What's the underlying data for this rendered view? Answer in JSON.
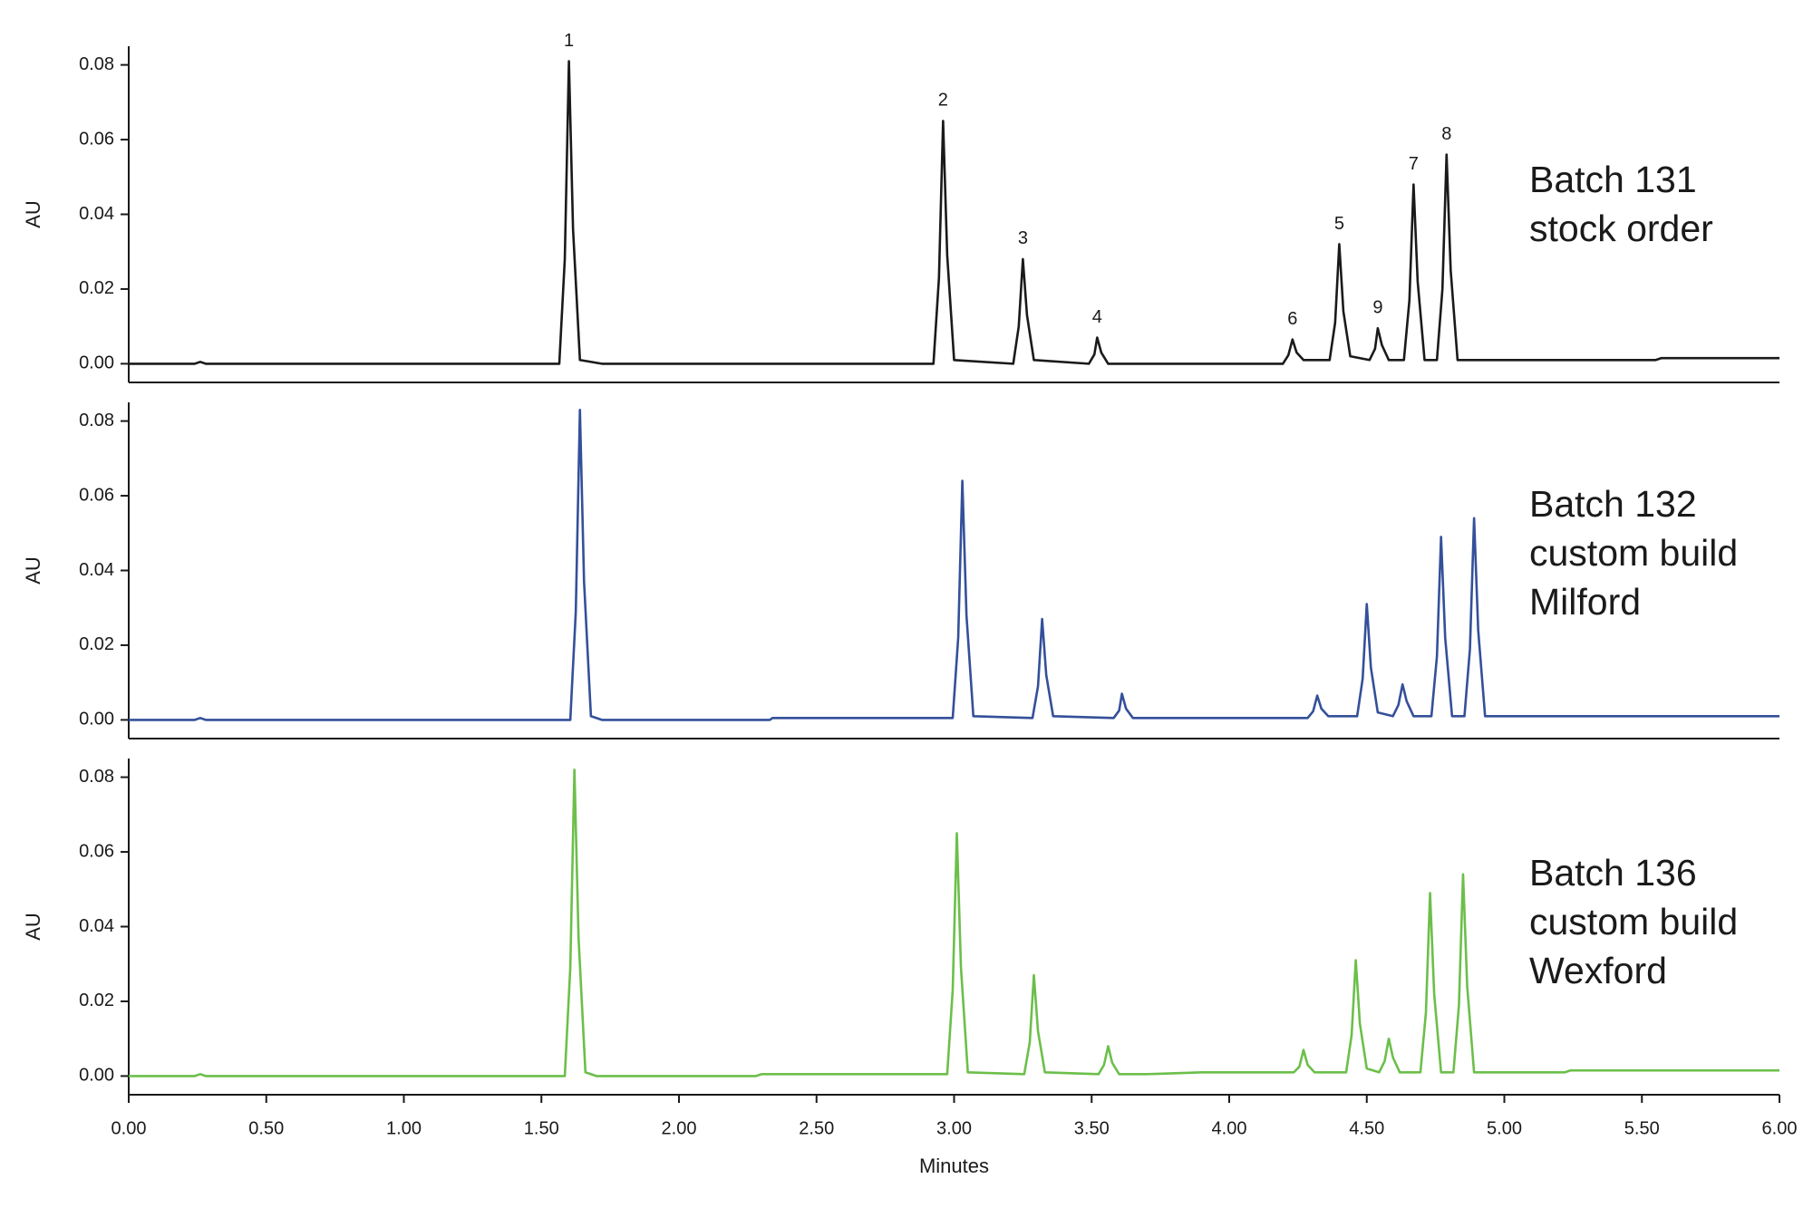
{
  "chart_data": [
    {
      "type": "line",
      "ylabel": "AU",
      "label": [
        "Batch 131",
        "stock order"
      ],
      "xlim": [
        0,
        6
      ],
      "ylim": [
        -0.005,
        0.085
      ],
      "yticks": [
        {
          "value": 0,
          "label": "0.00"
        },
        {
          "value": 0.02,
          "label": "0.02"
        },
        {
          "value": 0.04,
          "label": "0.04"
        },
        {
          "value": 0.06,
          "label": "0.06"
        },
        {
          "value": 0.08,
          "label": "0.08"
        }
      ],
      "x": [
        0,
        0.24,
        0.26,
        0.28,
        1.565,
        1.585,
        1.6,
        1.615,
        1.64,
        1.72,
        2.925,
        2.945,
        2.96,
        2.975,
        3.0,
        3.215,
        3.235,
        3.25,
        3.265,
        3.29,
        3.49,
        3.51,
        3.52,
        3.535,
        3.56,
        4.195,
        4.215,
        4.23,
        4.245,
        4.27,
        4.365,
        4.385,
        4.4,
        4.415,
        4.44,
        4.51,
        4.53,
        4.54,
        4.555,
        4.58,
        4.635,
        4.655,
        4.67,
        4.685,
        4.71,
        4.755,
        4.775,
        4.79,
        4.805,
        4.83,
        5.55,
        5.57,
        6.0
      ],
      "series": [
        {
          "color": "#1a1a1a",
          "values": [
            0,
            0,
            0.0005,
            0,
            0,
            0.028,
            0.081,
            0.036,
            0.001,
            0,
            0,
            0.023,
            0.065,
            0.029,
            0.001,
            0,
            0.01,
            0.028,
            0.013,
            0.001,
            0,
            0.0025,
            0.007,
            0.003,
            0,
            0,
            0.0023,
            0.0065,
            0.003,
            0.001,
            0.001,
            0.011,
            0.032,
            0.014,
            0.002,
            0.001,
            0.004,
            0.0095,
            0.005,
            0.001,
            0.001,
            0.017,
            0.048,
            0.022,
            0.001,
            0.001,
            0.02,
            0.056,
            0.025,
            0.001,
            0.001,
            0.0015,
            0.0015
          ]
        }
      ],
      "annotations": [
        {
          "text": "1",
          "x": 1.6,
          "y": 0.081
        },
        {
          "text": "2",
          "x": 2.96,
          "y": 0.065
        },
        {
          "text": "3",
          "x": 3.25,
          "y": 0.028
        },
        {
          "text": "4",
          "x": 3.52,
          "y": 0.007
        },
        {
          "text": "6",
          "x": 4.23,
          "y": 0.0065
        },
        {
          "text": "5",
          "x": 4.4,
          "y": 0.032
        },
        {
          "text": "9",
          "x": 4.54,
          "y": 0.0095
        },
        {
          "text": "7",
          "x": 4.67,
          "y": 0.048
        },
        {
          "text": "8",
          "x": 4.79,
          "y": 0.056
        }
      ]
    },
    {
      "type": "line",
      "ylabel": "AU",
      "label": [
        "Batch 132",
        "custom build",
        "Milford"
      ],
      "xlim": [
        0,
        6
      ],
      "ylim": [
        -0.005,
        0.085
      ],
      "yticks": [
        {
          "value": 0,
          "label": "0.00"
        },
        {
          "value": 0.02,
          "label": "0.02"
        },
        {
          "value": 0.04,
          "label": "0.04"
        },
        {
          "value": 0.06,
          "label": "0.06"
        },
        {
          "value": 0.08,
          "label": "0.08"
        }
      ],
      "x": [
        0,
        0.24,
        0.26,
        0.28,
        1.605,
        1.625,
        1.64,
        1.655,
        1.68,
        1.72,
        2.33,
        2.34,
        2.995,
        3.015,
        3.03,
        3.045,
        3.07,
        3.285,
        3.305,
        3.32,
        3.335,
        3.36,
        3.58,
        3.6,
        3.61,
        3.625,
        3.65,
        4.285,
        4.305,
        4.32,
        4.335,
        4.36,
        4.465,
        4.485,
        4.5,
        4.515,
        4.54,
        4.595,
        4.615,
        4.63,
        4.645,
        4.67,
        4.735,
        4.755,
        4.77,
        4.785,
        4.81,
        4.855,
        4.875,
        4.89,
        4.905,
        4.93,
        4.96,
        6.0
      ],
      "series": [
        {
          "color": "#34509a",
          "values": [
            0,
            0,
            0.0005,
            0,
            0,
            0.029,
            0.083,
            0.037,
            0.001,
            0,
            0,
            0.0005,
            0.0005,
            0.022,
            0.064,
            0.028,
            0.001,
            0.0005,
            0.009,
            0.027,
            0.012,
            0.001,
            0.0005,
            0.0025,
            0.007,
            0.003,
            0.0005,
            0.0005,
            0.0023,
            0.0065,
            0.003,
            0.001,
            0.001,
            0.011,
            0.031,
            0.014,
            0.002,
            0.001,
            0.004,
            0.0095,
            0.005,
            0.001,
            0.001,
            0.017,
            0.049,
            0.022,
            0.001,
            0.001,
            0.019,
            0.054,
            0.024,
            0.001,
            0.001,
            0.001
          ]
        }
      ]
    },
    {
      "type": "line",
      "ylabel": "AU",
      "label": [
        "Batch 136",
        "custom build",
        "Wexford"
      ],
      "xlabel": "Minutes",
      "xlim": [
        0,
        6
      ],
      "ylim": [
        -0.005,
        0.085
      ],
      "xticks": [
        {
          "value": 0,
          "label": "0.00"
        },
        {
          "value": 0.5,
          "label": "0.50"
        },
        {
          "value": 1,
          "label": "1.00"
        },
        {
          "value": 1.5,
          "label": "1.50"
        },
        {
          "value": 2,
          "label": "2.00"
        },
        {
          "value": 2.5,
          "label": "2.50"
        },
        {
          "value": 3,
          "label": "3.00"
        },
        {
          "value": 3.5,
          "label": "3.50"
        },
        {
          "value": 4,
          "label": "4.00"
        },
        {
          "value": 4.5,
          "label": "4.50"
        },
        {
          "value": 5,
          "label": "5.00"
        },
        {
          "value": 5.5,
          "label": "5.50"
        },
        {
          "value": 6,
          "label": "6.00"
        }
      ],
      "yticks": [
        {
          "value": 0,
          "label": "0.00"
        },
        {
          "value": 0.02,
          "label": "0.02"
        },
        {
          "value": 0.04,
          "label": "0.04"
        },
        {
          "value": 0.06,
          "label": "0.06"
        },
        {
          "value": 0.08,
          "label": "0.08"
        }
      ],
      "x": [
        0,
        0.24,
        0.26,
        0.28,
        1.585,
        1.605,
        1.62,
        1.635,
        1.66,
        1.7,
        2.28,
        2.3,
        2.975,
        2.995,
        3.01,
        3.025,
        3.05,
        3.255,
        3.275,
        3.29,
        3.305,
        3.33,
        3.525,
        3.545,
        3.56,
        3.575,
        3.6,
        3.68,
        3.7,
        3.9,
        4.235,
        4.255,
        4.27,
        4.285,
        4.31,
        4.425,
        4.445,
        4.46,
        4.475,
        4.5,
        4.545,
        4.565,
        4.58,
        4.595,
        4.62,
        4.695,
        4.715,
        4.73,
        4.745,
        4.77,
        4.815,
        4.835,
        4.85,
        4.865,
        4.89,
        5.22,
        5.24,
        6.0
      ],
      "series": [
        {
          "color": "#6cbf4a",
          "values": [
            0,
            0,
            0.0005,
            0,
            0,
            0.029,
            0.082,
            0.037,
            0.001,
            0,
            0,
            0.0005,
            0.0005,
            0.023,
            0.065,
            0.029,
            0.001,
            0.0005,
            0.009,
            0.027,
            0.012,
            0.001,
            0.0005,
            0.003,
            0.008,
            0.0035,
            0.0005,
            0.0005,
            0.0005,
            0.001,
            0.001,
            0.0025,
            0.007,
            0.003,
            0.001,
            0.001,
            0.011,
            0.031,
            0.014,
            0.002,
            0.001,
            0.004,
            0.01,
            0.005,
            0.001,
            0.001,
            0.017,
            0.049,
            0.022,
            0.001,
            0.001,
            0.019,
            0.054,
            0.024,
            0.001,
            0.001,
            0.0015,
            0.0015
          ]
        }
      ]
    }
  ]
}
